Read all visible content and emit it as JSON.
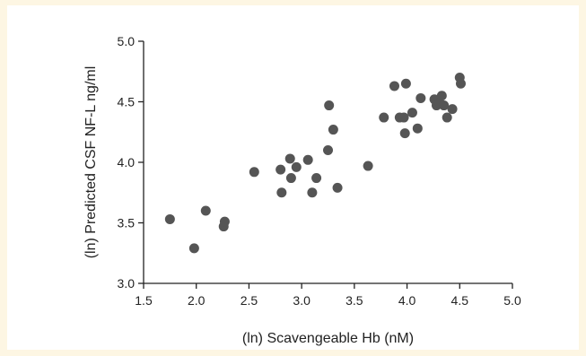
{
  "chart_data": {
    "type": "scatter",
    "title": "",
    "xlabel": "(ln) Scavengeable Hb (nM)",
    "ylabel": "(ln) Predicted CSF NF-L ng/ml",
    "xlim": [
      1.5,
      5.0
    ],
    "ylim": [
      3.0,
      5.0
    ],
    "xticks": [
      "1.5",
      "2.0",
      "2.5",
      "3.0",
      "3.5",
      "4.0",
      "4.5",
      "5.0"
    ],
    "yticks": [
      "3.0",
      "3.5",
      "4.0",
      "4.5",
      "5.0"
    ],
    "grid": false,
    "legend": false,
    "series": [
      {
        "color": "#555555",
        "points": [
          [
            1.75,
            3.53
          ],
          [
            1.98,
            3.29
          ],
          [
            2.09,
            3.6
          ],
          [
            2.26,
            3.47
          ],
          [
            2.27,
            3.51
          ],
          [
            2.55,
            3.92
          ],
          [
            2.8,
            3.94
          ],
          [
            2.81,
            3.75
          ],
          [
            2.89,
            4.03
          ],
          [
            2.9,
            3.87
          ],
          [
            2.95,
            3.96
          ],
          [
            3.06,
            4.02
          ],
          [
            3.1,
            3.75
          ],
          [
            3.14,
            3.87
          ],
          [
            3.25,
            4.1
          ],
          [
            3.26,
            4.47
          ],
          [
            3.3,
            4.27
          ],
          [
            3.34,
            3.79
          ],
          [
            3.63,
            3.97
          ],
          [
            3.78,
            4.37
          ],
          [
            3.88,
            4.63
          ],
          [
            3.93,
            4.37
          ],
          [
            3.97,
            4.37
          ],
          [
            3.98,
            4.24
          ],
          [
            3.99,
            4.65
          ],
          [
            4.05,
            4.41
          ],
          [
            4.1,
            4.28
          ],
          [
            4.13,
            4.53
          ],
          [
            4.26,
            4.52
          ],
          [
            4.28,
            4.47
          ],
          [
            4.31,
            4.49
          ],
          [
            4.33,
            4.55
          ],
          [
            4.35,
            4.47
          ],
          [
            4.38,
            4.37
          ],
          [
            4.43,
            4.44
          ],
          [
            4.5,
            4.7
          ],
          [
            4.51,
            4.65
          ]
        ]
      }
    ]
  }
}
